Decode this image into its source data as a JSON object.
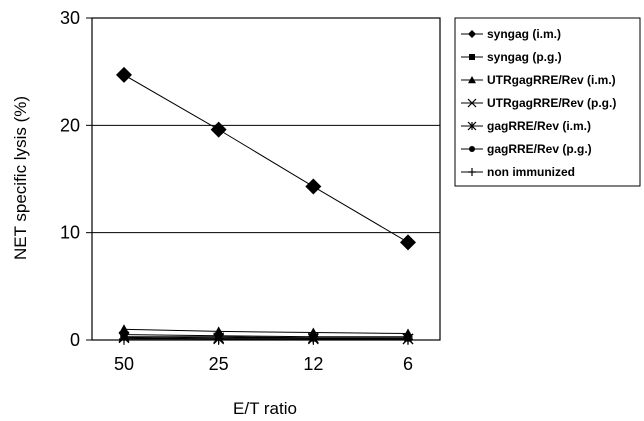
{
  "chart_data": {
    "type": "line",
    "title": "",
    "xlabel": "E/T ratio",
    "ylabel": "NET specific lysis (%)",
    "categories": [
      "50",
      "25",
      "12",
      "6"
    ],
    "ylim": [
      0,
      30
    ],
    "yticks": [
      "0",
      "10",
      "20",
      "30"
    ],
    "grid": true,
    "legend_position": "right",
    "series": [
      {
        "name": "syngag (i.m.)",
        "marker": "diamond",
        "values": [
          24.7,
          19.6,
          14.3,
          9.1
        ]
      },
      {
        "name": "syngag (p.g.)",
        "marker": "square",
        "values": [
          0.3,
          0.3,
          0.2,
          0.2
        ]
      },
      {
        "name": "UTRgagRRE/Rev (i.m.)",
        "marker": "triangle",
        "values": [
          1.0,
          0.8,
          0.7,
          0.6
        ]
      },
      {
        "name": "UTRgagRRE/Rev (p.g.)",
        "marker": "x",
        "values": [
          0.2,
          0.1,
          0.1,
          0.1
        ]
      },
      {
        "name": "gagRRE/Rev (i.m.)",
        "marker": "asterisk",
        "values": [
          0.3,
          0.2,
          0.2,
          0.1
        ]
      },
      {
        "name": "gagRRE/Rev (p.g.)",
        "marker": "circle",
        "values": [
          0.5,
          0.4,
          0.3,
          0.3
        ]
      },
      {
        "name": "non immunized",
        "marker": "plus",
        "values": [
          0.1,
          0.1,
          0.1,
          0.1
        ]
      }
    ]
  }
}
